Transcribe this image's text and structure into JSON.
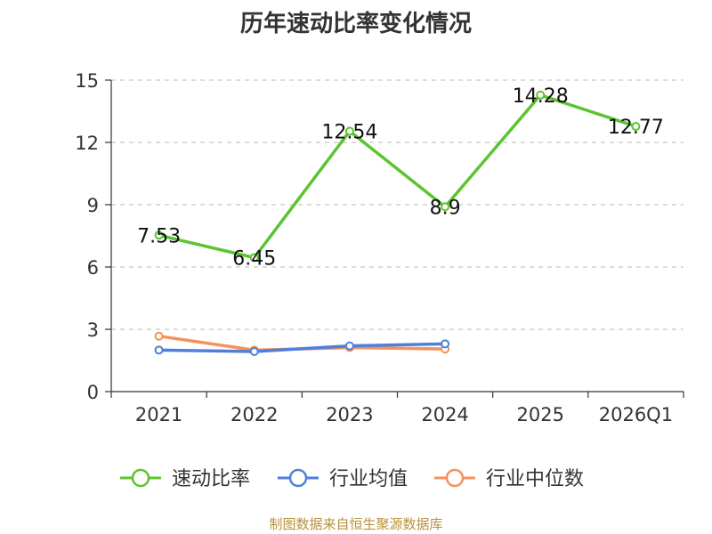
{
  "chart_data": {
    "type": "line",
    "title": "历年速动比率变化情况",
    "categories": [
      "2021",
      "2022",
      "2023",
      "2024",
      "2025",
      "2026Q1"
    ],
    "ylim": [
      0,
      15
    ],
    "yticks": [
      0,
      3,
      6,
      9,
      12,
      15
    ],
    "grid": true,
    "legend_position": "bottom",
    "series": [
      {
        "name": "速动比率",
        "color": "#5cc431",
        "values": [
          7.53,
          6.45,
          12.54,
          8.9,
          14.28,
          12.77
        ],
        "labels": [
          "7.53",
          "6.45",
          "12.54",
          "8.9",
          "14.28",
          "12.77"
        ]
      },
      {
        "name": "行业均值",
        "color": "#4f7fdb",
        "values": [
          2.0,
          1.93,
          2.2,
          2.3,
          null,
          null
        ]
      },
      {
        "name": "行业中位数",
        "color": "#f5915a",
        "values": [
          2.67,
          2.0,
          2.12,
          2.05,
          null,
          null
        ]
      }
    ]
  },
  "source_note": "制图数据来自恒生聚源数据库"
}
